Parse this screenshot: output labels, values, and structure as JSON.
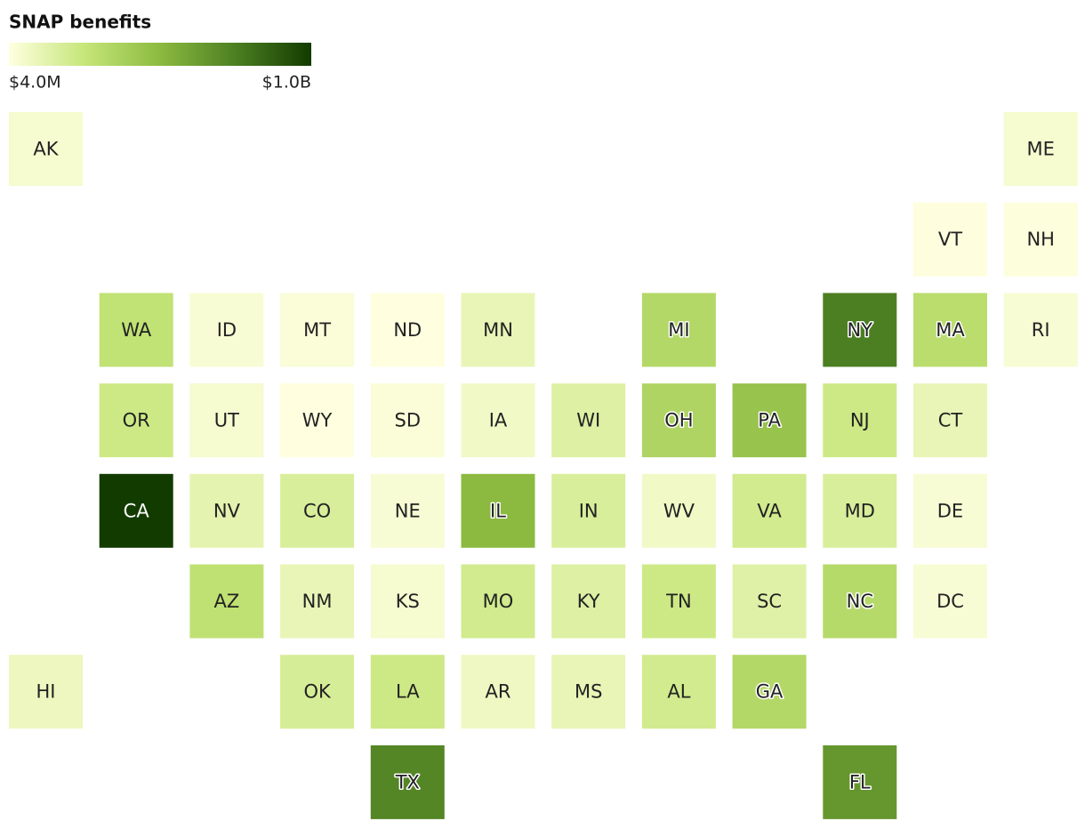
{
  "title": "SNAP benefits",
  "legend": {
    "min": {
      "value": 4000000,
      "label": "$4.0M"
    },
    "max": {
      "value": 1000000000,
      "label": "$1.0B"
    },
    "colors": [
      "#ffffe0",
      "#c6e67a",
      "#8cba40",
      "#4c7f22",
      "#123b00"
    ]
  },
  "tiles": [
    [
      {
        "label": "AK",
        "value": 44000000
      },
      null,
      null,
      null,
      null,
      null,
      null,
      null,
      null,
      null,
      null,
      {
        "label": "ME",
        "value": 44000000
      }
    ],
    [
      null,
      null,
      null,
      null,
      null,
      null,
      null,
      null,
      null,
      null,
      {
        "label": "VT",
        "value": 9000000
      },
      {
        "label": "NH",
        "value": 14000000
      }
    ],
    [
      null,
      {
        "label": "WA",
        "value": 273000000
      },
      {
        "label": "ID",
        "value": 34000000
      },
      {
        "label": "MT",
        "value": 24000000
      },
      {
        "label": "ND",
        "value": 4000000
      },
      {
        "label": "MN",
        "value": 104000000
      },
      null,
      {
        "label": "MI",
        "value": 333000000
      },
      null,
      {
        "label": "NY",
        "value": 751000000
      },
      {
        "label": "MA",
        "value": 303000000
      },
      {
        "label": "RI",
        "value": 34000000
      }
    ],
    [
      null,
      {
        "label": "OR",
        "value": 223000000
      },
      {
        "label": "UT",
        "value": 44000000
      },
      {
        "label": "WY",
        "value": 4000000
      },
      {
        "label": "SD",
        "value": 24000000
      },
      {
        "label": "IA",
        "value": 64000000
      },
      {
        "label": "WI",
        "value": 153000000
      },
      {
        "label": "OH",
        "value": 353000000
      },
      {
        "label": "PA",
        "value": 450000000
      },
      {
        "label": "NJ",
        "value": 223000000
      },
      {
        "label": "CT",
        "value": 104000000
      },
      null
    ],
    [
      null,
      {
        "label": "CA",
        "value": 1000000000
      },
      {
        "label": "NV",
        "value": 124000000
      },
      {
        "label": "CO",
        "value": 173000000
      },
      {
        "label": "NE",
        "value": 34000000
      },
      {
        "label": "IL",
        "value": 500000000
      },
      {
        "label": "IN",
        "value": 173000000
      },
      {
        "label": "WV",
        "value": 64000000
      },
      {
        "label": "VA",
        "value": 203000000
      },
      {
        "label": "MD",
        "value": 173000000
      },
      {
        "label": "DE",
        "value": 34000000
      },
      null
    ],
    [
      null,
      null,
      {
        "label": "AZ",
        "value": 283000000
      },
      {
        "label": "NM",
        "value": 104000000
      },
      {
        "label": "KS",
        "value": 44000000
      },
      {
        "label": "MO",
        "value": 203000000
      },
      {
        "label": "KY",
        "value": 153000000
      },
      {
        "label": "TN",
        "value": 223000000
      },
      {
        "label": "SC",
        "value": 143000000
      },
      {
        "label": "NC",
        "value": 323000000
      },
      {
        "label": "DC",
        "value": 34000000
      },
      null
    ],
    [
      {
        "label": "HI",
        "value": 84000000
      },
      null,
      null,
      {
        "label": "OK",
        "value": 183000000
      },
      {
        "label": "LA",
        "value": 223000000
      },
      {
        "label": "AR",
        "value": 74000000
      },
      {
        "label": "MS",
        "value": 104000000
      },
      {
        "label": "AL",
        "value": 203000000
      },
      {
        "label": "GA",
        "value": 333000000
      },
      null,
      null,
      null
    ],
    [
      null,
      null,
      null,
      null,
      {
        "label": "TX",
        "value": 720000000
      },
      null,
      null,
      null,
      null,
      {
        "label": "FL",
        "value": 650000000
      },
      null,
      null
    ]
  ]
}
